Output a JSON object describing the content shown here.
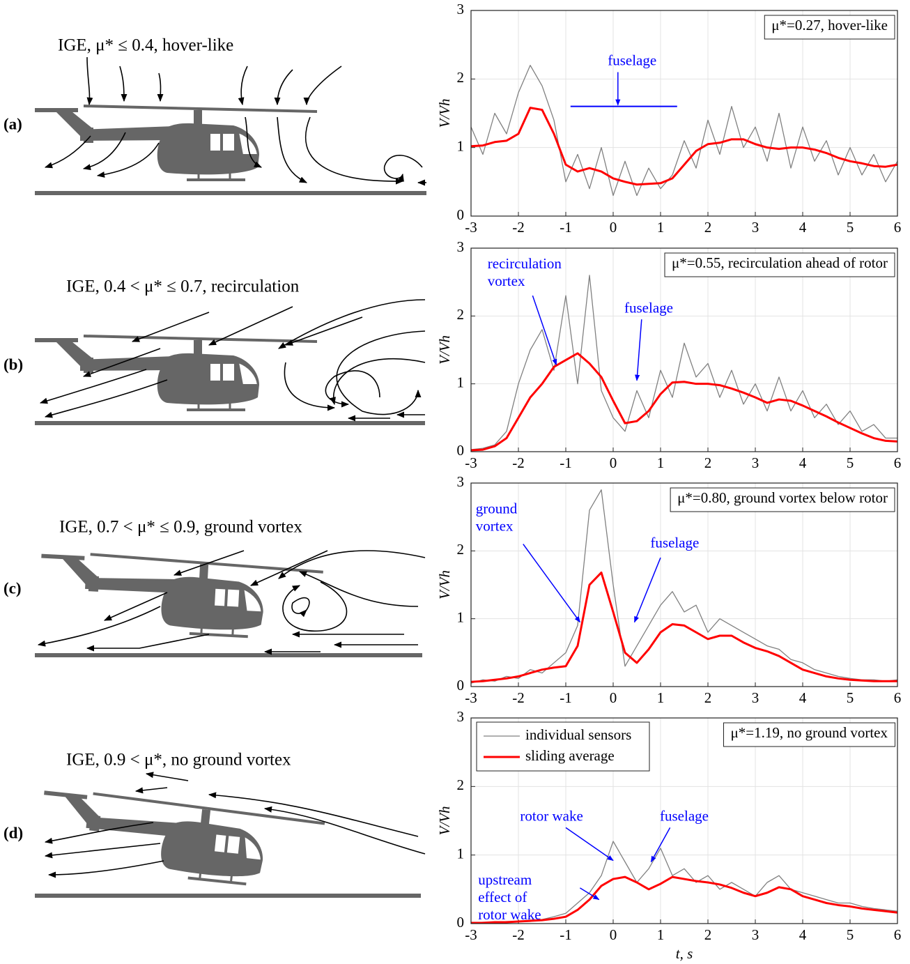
{
  "diagrams": [
    {
      "label": "(a)",
      "caption": "IGE, μ* ≤ 0.4, hover-like"
    },
    {
      "label": "(b)",
      "caption": "IGE, 0.4 < μ* ≤ 0.7, recirculation"
    },
    {
      "label": "(c)",
      "caption": "IGE, 0.7 < μ* ≤ 0.9, ground vortex"
    },
    {
      "label": "(d)",
      "caption": "IGE, 0.9 < μ*, no ground vortex"
    }
  ],
  "chart_data": [
    {
      "type": "line",
      "ylabel": "V/Vh",
      "note": "μ*=0.27, hover-like",
      "annotations": [
        [
          "fuselage"
        ]
      ],
      "xlim": [
        -3,
        6
      ],
      "ylim": [
        0,
        3
      ],
      "xticks": [
        -3,
        -2,
        -1,
        0,
        1,
        2,
        3,
        4,
        5,
        6
      ],
      "yticks": [
        0,
        1,
        2,
        3
      ],
      "grid": true,
      "x": [
        -3,
        -2.75,
        -2.5,
        -2.25,
        -2,
        -1.75,
        -1.5,
        -1.25,
        -1,
        -0.75,
        -0.5,
        -0.25,
        0,
        0.25,
        0.5,
        0.75,
        1,
        1.25,
        1.5,
        1.75,
        2,
        2.25,
        2.5,
        2.75,
        3,
        3.25,
        3.5,
        3.75,
        4,
        4.25,
        4.5,
        4.75,
        5,
        5.25,
        5.5,
        5.75,
        6
      ],
      "series": [
        {
          "name": "individual sensors",
          "color": "#808080",
          "values": [
            1.3,
            0.9,
            1.5,
            1.2,
            1.8,
            2.2,
            1.9,
            1.4,
            0.5,
            0.9,
            0.4,
            1.0,
            0.3,
            0.8,
            0.3,
            0.7,
            0.4,
            0.6,
            1.1,
            0.7,
            1.4,
            0.9,
            1.6,
            1.0,
            1.3,
            0.8,
            1.5,
            0.7,
            1.3,
            0.8,
            1.1,
            0.6,
            1.0,
            0.6,
            0.9,
            0.5,
            0.8
          ]
        },
        {
          "name": "sliding average",
          "color": "#ff0000",
          "values": [
            1.02,
            1.03,
            1.08,
            1.1,
            1.2,
            1.58,
            1.55,
            1.2,
            0.75,
            0.65,
            0.7,
            0.65,
            0.55,
            0.5,
            0.46,
            0.47,
            0.48,
            0.55,
            0.75,
            0.95,
            1.05,
            1.07,
            1.12,
            1.12,
            1.05,
            1.0,
            0.98,
            1.0,
            1.0,
            0.97,
            0.92,
            0.85,
            0.8,
            0.77,
            0.73,
            0.72,
            0.75
          ]
        }
      ]
    },
    {
      "type": "line",
      "ylabel": "V/Vh",
      "note": "μ*=0.55, recirculation ahead of rotor",
      "annotations": [
        [
          "recirculation",
          "vortex"
        ],
        [
          "fuselage"
        ]
      ],
      "xlim": [
        -3,
        6
      ],
      "ylim": [
        0,
        3
      ],
      "xticks": [
        -3,
        -2,
        -1,
        0,
        1,
        2,
        3,
        4,
        5,
        6
      ],
      "yticks": [
        0,
        1,
        2,
        3
      ],
      "grid": true,
      "x": [
        -3,
        -2.75,
        -2.5,
        -2.25,
        -2,
        -1.75,
        -1.5,
        -1.25,
        -1,
        -0.75,
        -0.5,
        -0.25,
        0,
        0.25,
        0.5,
        0.75,
        1,
        1.25,
        1.5,
        1.75,
        2,
        2.25,
        2.5,
        2.75,
        3,
        3.25,
        3.5,
        3.75,
        4,
        4.25,
        4.5,
        4.75,
        5,
        5.25,
        5.5,
        5.75,
        6
      ],
      "series": [
        {
          "name": "individual sensors",
          "color": "#808080",
          "values": [
            0.03,
            0.05,
            0.1,
            0.3,
            1.0,
            1.5,
            1.8,
            1.2,
            2.3,
            1.0,
            2.6,
            0.9,
            0.5,
            0.3,
            0.9,
            0.5,
            1.2,
            0.8,
            1.6,
            1.1,
            1.3,
            0.8,
            1.2,
            0.7,
            1.0,
            0.6,
            1.1,
            0.6,
            0.9,
            0.5,
            0.7,
            0.4,
            0.6,
            0.3,
            0.4,
            0.2,
            0.2
          ]
        },
        {
          "name": "sliding average",
          "color": "#ff0000",
          "values": [
            0.02,
            0.03,
            0.08,
            0.2,
            0.5,
            0.8,
            1.0,
            1.25,
            1.35,
            1.45,
            1.3,
            1.1,
            0.75,
            0.42,
            0.45,
            0.6,
            0.85,
            1.02,
            1.03,
            1.0,
            1.0,
            0.98,
            0.93,
            0.87,
            0.8,
            0.72,
            0.77,
            0.75,
            0.68,
            0.6,
            0.52,
            0.43,
            0.35,
            0.27,
            0.2,
            0.16,
            0.15
          ]
        }
      ]
    },
    {
      "type": "line",
      "ylabel": "V/Vh",
      "note": "μ*=0.80, ground vortex below rotor",
      "annotations": [
        [
          "ground",
          "vortex"
        ],
        [
          "fuselage"
        ]
      ],
      "xlim": [
        -3,
        6
      ],
      "ylim": [
        0,
        3
      ],
      "xticks": [
        -3,
        -2,
        -1,
        0,
        1,
        2,
        3,
        4,
        5,
        6
      ],
      "yticks": [
        0,
        1,
        2,
        3
      ],
      "grid": true,
      "x": [
        -3,
        -2.75,
        -2.5,
        -2.25,
        -2,
        -1.75,
        -1.5,
        -1.25,
        -1,
        -0.75,
        -0.5,
        -0.25,
        0,
        0.25,
        0.5,
        0.75,
        1,
        1.25,
        1.5,
        1.75,
        2,
        2.25,
        2.5,
        2.75,
        3,
        3.25,
        3.5,
        3.75,
        4,
        4.25,
        4.5,
        4.75,
        5,
        5.25,
        5.5,
        5.75,
        6
      ],
      "series": [
        {
          "name": "individual sensors",
          "color": "#808080",
          "values": [
            0.05,
            0.1,
            0.08,
            0.15,
            0.12,
            0.25,
            0.2,
            0.35,
            0.5,
            0.9,
            2.6,
            2.9,
            1.5,
            0.3,
            0.6,
            0.9,
            1.2,
            1.4,
            1.1,
            1.2,
            0.8,
            1.0,
            0.9,
            0.8,
            0.7,
            0.6,
            0.55,
            0.4,
            0.35,
            0.25,
            0.2,
            0.15,
            0.12,
            0.1,
            0.1,
            0.08,
            0.1
          ]
        },
        {
          "name": "sliding average",
          "color": "#ff0000",
          "values": [
            0.07,
            0.08,
            0.1,
            0.12,
            0.15,
            0.2,
            0.25,
            0.28,
            0.3,
            0.6,
            1.5,
            1.68,
            1.1,
            0.5,
            0.35,
            0.55,
            0.8,
            0.92,
            0.9,
            0.8,
            0.7,
            0.75,
            0.75,
            0.65,
            0.57,
            0.52,
            0.45,
            0.35,
            0.25,
            0.2,
            0.15,
            0.12,
            0.1,
            0.09,
            0.08,
            0.08,
            0.08
          ]
        }
      ]
    },
    {
      "type": "line",
      "ylabel": "V/Vh",
      "xlabel": "t, s",
      "note": "μ*=1.19, no ground vortex",
      "legend": "upper left",
      "annotations": [
        [
          "rotor wake"
        ],
        [
          "fuselage"
        ],
        [
          "upstream",
          "effect of",
          "rotor wake"
        ]
      ],
      "xlim": [
        -3,
        6
      ],
      "ylim": [
        0,
        3
      ],
      "xticks": [
        -3,
        -2,
        -1,
        0,
        1,
        2,
        3,
        4,
        5,
        6
      ],
      "yticks": [
        0,
        1,
        2,
        3
      ],
      "grid": true,
      "x": [
        -3,
        -2.75,
        -2.5,
        -2.25,
        -2,
        -1.75,
        -1.5,
        -1.25,
        -1,
        -0.75,
        -0.5,
        -0.25,
        0,
        0.25,
        0.5,
        0.75,
        1,
        1.25,
        1.5,
        1.75,
        2,
        2.25,
        2.5,
        2.75,
        3,
        3.25,
        3.5,
        3.75,
        4,
        4.25,
        4.5,
        4.75,
        5,
        5.25,
        5.5,
        5.75,
        6
      ],
      "series": [
        {
          "name": "individual sensors",
          "color": "#808080",
          "values": [
            0.01,
            0.02,
            0.02,
            0.03,
            0.03,
            0.05,
            0.06,
            0.1,
            0.15,
            0.3,
            0.45,
            0.7,
            1.2,
            0.9,
            0.6,
            0.8,
            1.1,
            0.7,
            0.8,
            0.6,
            0.7,
            0.5,
            0.6,
            0.5,
            0.4,
            0.6,
            0.7,
            0.5,
            0.45,
            0.4,
            0.35,
            0.3,
            0.3,
            0.25,
            0.22,
            0.2,
            0.18
          ]
        },
        {
          "name": "sliding average",
          "color": "#ff0000",
          "values": [
            0.01,
            0.01,
            0.02,
            0.02,
            0.03,
            0.04,
            0.05,
            0.07,
            0.1,
            0.2,
            0.35,
            0.55,
            0.65,
            0.68,
            0.6,
            0.5,
            0.58,
            0.68,
            0.65,
            0.62,
            0.6,
            0.57,
            0.52,
            0.45,
            0.4,
            0.45,
            0.53,
            0.5,
            0.4,
            0.35,
            0.3,
            0.27,
            0.25,
            0.22,
            0.2,
            0.18,
            0.16
          ]
        }
      ]
    }
  ]
}
